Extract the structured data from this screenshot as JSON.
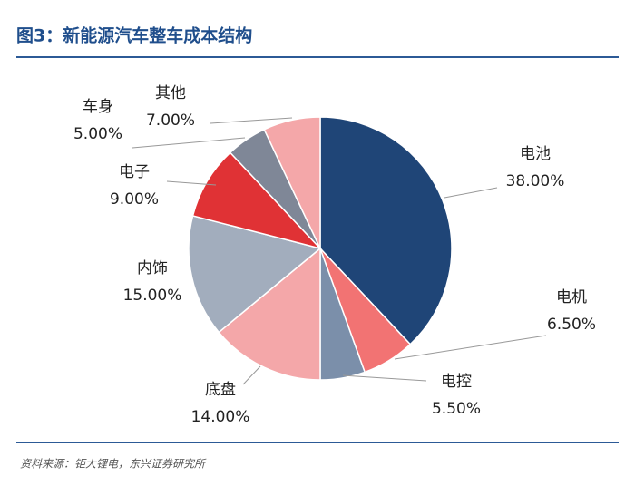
{
  "chart_data": {
    "type": "pie",
    "title": "图3：新能源汽车整车成本结构",
    "source": "资料来源：钜大锂电，东兴证券研究所",
    "categories": [
      "电池",
      "电机",
      "电控",
      "底盘",
      "内饰",
      "电子",
      "车身",
      "其他"
    ],
    "values": [
      38,
      6.5,
      5.5,
      14,
      15,
      9,
      5,
      7
    ],
    "value_labels": [
      "38.00%",
      "6.50%",
      "5.50%",
      "14.00%",
      "15.00%",
      "9.00%",
      "5.00%",
      "7.00%"
    ],
    "colors": [
      "#1f4577",
      "#f27373",
      "#7b8faa",
      "#f4a7a9",
      "#a2adbd",
      "#e03235",
      "#7f8797",
      "#f4a7a9"
    ]
  }
}
